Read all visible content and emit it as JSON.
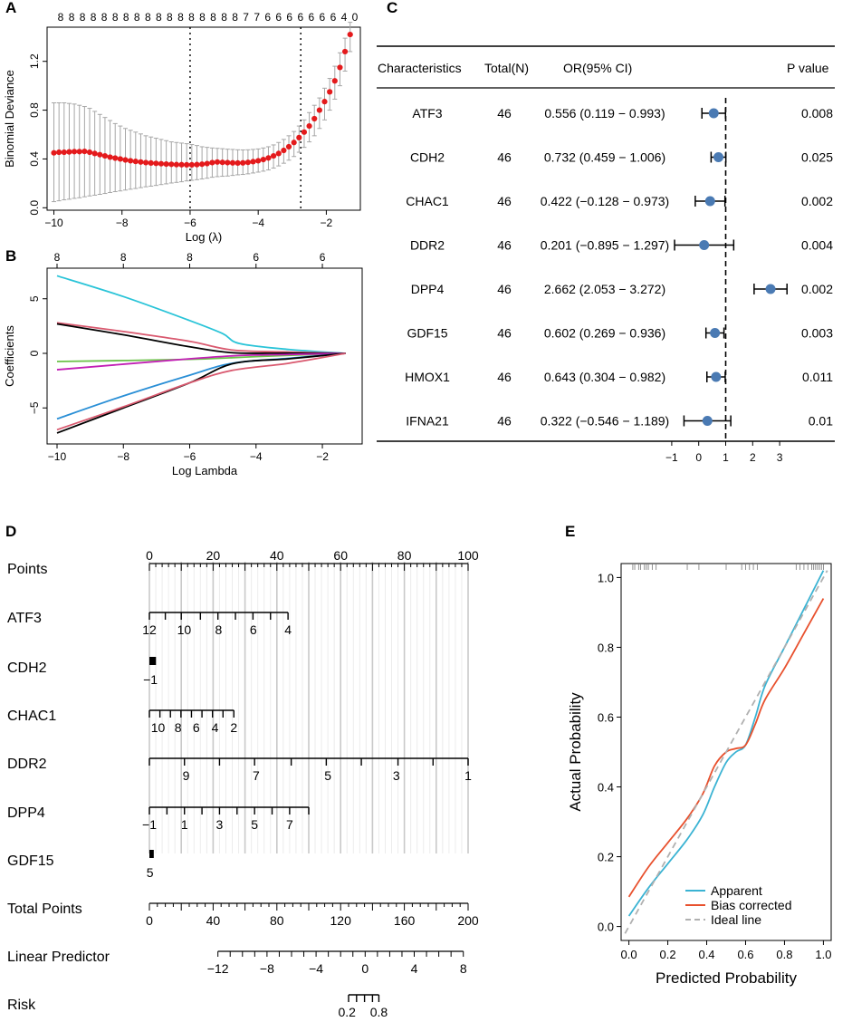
{
  "colors": {
    "red": "#e41a1c",
    "gray_bar": "#a6a6a6",
    "point_blue": "#4a7ab3",
    "cyan": "#2ac4d8",
    "rose": "#d9596f",
    "black": "#000000",
    "green": "#6cc24a",
    "magenta": "#c21fb5",
    "blue": "#2a8fd6",
    "apparent": "#3bb3d3",
    "bias": "#e8512e",
    "ideal": "#b0b0b0"
  },
  "labels": {
    "a": "A",
    "b": "B",
    "c": "C",
    "d": "D",
    "e": "E"
  },
  "chart_data": [
    {
      "id": "A",
      "type": "scatter",
      "title": "",
      "xlabel": "Log (λ)",
      "ylabel": "Binomial Deviance",
      "xlim": [
        -10.2,
        -1.0
      ],
      "ylim": [
        -0.02,
        1.48
      ],
      "xticks": [
        -10,
        -8,
        -6,
        -4,
        -2
      ],
      "yticks": [
        0.0,
        0.4,
        0.8,
        1.2
      ],
      "xtick_labels": [
        "−10",
        "−8",
        "−6",
        "−4",
        "−2"
      ],
      "ytick_labels": [
        "0.0",
        "0.4",
        "0.8",
        "1.2"
      ],
      "top_axis_labels": [
        "8",
        "8",
        "8",
        "8",
        "8",
        "8",
        "8",
        "8",
        "8",
        "8",
        "8",
        "8",
        "8",
        "8",
        "8",
        "8",
        "8",
        "7",
        "7",
        "6",
        "6",
        "6",
        "6",
        "6",
        "6",
        "6",
        "4",
        "0"
      ],
      "vlines": [
        -6.0,
        -2.75
      ],
      "x": [
        -10.0,
        -9.85,
        -9.7,
        -9.55,
        -9.4,
        -9.25,
        -9.1,
        -8.95,
        -8.8,
        -8.65,
        -8.5,
        -8.35,
        -8.2,
        -8.05,
        -7.9,
        -7.75,
        -7.6,
        -7.45,
        -7.3,
        -7.15,
        -7.0,
        -6.85,
        -6.7,
        -6.55,
        -6.4,
        -6.25,
        -6.1,
        -5.95,
        -5.8,
        -5.65,
        -5.5,
        -5.35,
        -5.2,
        -5.05,
        -4.9,
        -4.75,
        -4.6,
        -4.45,
        -4.3,
        -4.15,
        -4.0,
        -3.85,
        -3.7,
        -3.55,
        -3.4,
        -3.25,
        -3.1,
        -2.95,
        -2.8,
        -2.65,
        -2.5,
        -2.35,
        -2.2,
        -2.05,
        -1.9,
        -1.75,
        -1.6,
        -1.45,
        -1.3
      ],
      "y": [
        0.45,
        0.455,
        0.455,
        0.458,
        0.46,
        0.46,
        0.462,
        0.455,
        0.445,
        0.435,
        0.425,
        0.415,
        0.407,
        0.4,
        0.392,
        0.385,
        0.38,
        0.375,
        0.37,
        0.367,
        0.364,
        0.361,
        0.358,
        0.356,
        0.354,
        0.353,
        0.352,
        0.352,
        0.354,
        0.357,
        0.362,
        0.37,
        0.375,
        0.372,
        0.37,
        0.368,
        0.367,
        0.368,
        0.372,
        0.378,
        0.385,
        0.395,
        0.408,
        0.425,
        0.445,
        0.47,
        0.5,
        0.535,
        0.575,
        0.62,
        0.67,
        0.73,
        0.8,
        0.87,
        0.95,
        1.04,
        1.15,
        1.28,
        1.42
      ],
      "lower": [
        0.05,
        0.057,
        0.065,
        0.07,
        0.077,
        0.082,
        0.09,
        0.097,
        0.103,
        0.11,
        0.117,
        0.125,
        0.132,
        0.138,
        0.145,
        0.152,
        0.158,
        0.165,
        0.172,
        0.177,
        0.183,
        0.19,
        0.196,
        0.203,
        0.208,
        0.213,
        0.22,
        0.225,
        0.23,
        0.236,
        0.242,
        0.25,
        0.255,
        0.258,
        0.26,
        0.265,
        0.27,
        0.273,
        0.278,
        0.285,
        0.292,
        0.3,
        0.31,
        0.325,
        0.343,
        0.365,
        0.39,
        0.42,
        0.455,
        0.495,
        0.54,
        0.59,
        0.65,
        0.72,
        0.8,
        0.89,
        1.0,
        1.12,
        1.28
      ],
      "upper": [
        0.86,
        0.86,
        0.86,
        0.855,
        0.85,
        0.84,
        0.83,
        0.815,
        0.79,
        0.765,
        0.74,
        0.715,
        0.69,
        0.67,
        0.65,
        0.635,
        0.62,
        0.605,
        0.59,
        0.58,
        0.57,
        0.56,
        0.55,
        0.54,
        0.535,
        0.53,
        0.525,
        0.518,
        0.51,
        0.5,
        0.495,
        0.49,
        0.487,
        0.484,
        0.48,
        0.478,
        0.475,
        0.474,
        0.475,
        0.478,
        0.482,
        0.49,
        0.5,
        0.515,
        0.535,
        0.56,
        0.59,
        0.625,
        0.67,
        0.72,
        0.78,
        0.84,
        0.9,
        0.98,
        1.06,
        1.16,
        1.27,
        1.39,
        1.52
      ]
    },
    {
      "id": "B",
      "type": "line",
      "title": "",
      "xlabel": "Log Lambda",
      "ylabel": "Coefficients",
      "xlim": [
        -10.3,
        -0.8
      ],
      "ylim": [
        -8.3,
        7.8
      ],
      "xticks": [
        -10,
        -8,
        -6,
        -4,
        -2
      ],
      "yticks": [
        -5,
        0,
        5
      ],
      "xtick_labels": [
        "−10",
        "−8",
        "−6",
        "−4",
        "−2"
      ],
      "ytick_labels": [
        "−5",
        "0",
        "5"
      ],
      "top_axis_labels": [
        "8",
        "8",
        "8",
        "6",
        "6"
      ],
      "top_axis_positions": [
        -10,
        -8,
        -6,
        -4,
        -2
      ],
      "series": [
        {
          "name": "cyan",
          "color_key": "cyan",
          "x": [
            -10,
            -8,
            -6,
            -5,
            -4.5,
            -3,
            -1.3
          ],
          "y": [
            7.1,
            5.2,
            3.0,
            1.8,
            0.9,
            0.35,
            0
          ]
        },
        {
          "name": "rose-top",
          "color_key": "rose",
          "x": [
            -10,
            -8,
            -6,
            -4.7,
            -3,
            -1.3
          ],
          "y": [
            2.8,
            2.0,
            1.1,
            0.3,
            0.12,
            0
          ]
        },
        {
          "name": "black-top",
          "color_key": "black",
          "x": [
            -10,
            -8,
            -6,
            -4.7,
            -3,
            -1.3
          ],
          "y": [
            2.7,
            1.7,
            0.6,
            0.05,
            0.02,
            0
          ]
        },
        {
          "name": "green",
          "color_key": "green",
          "x": [
            -10,
            -6,
            -4,
            -1.3
          ],
          "y": [
            -0.75,
            -0.55,
            -0.3,
            0
          ]
        },
        {
          "name": "magenta",
          "color_key": "magenta",
          "x": [
            -10,
            -6,
            -4.5,
            -3,
            -1.3
          ],
          "y": [
            -1.5,
            -0.5,
            -0.2,
            -0.1,
            0
          ]
        },
        {
          "name": "blue",
          "color_key": "blue",
          "x": [
            -10,
            -8,
            -6,
            -4.7,
            -3,
            -1.3
          ],
          "y": [
            -6.0,
            -3.9,
            -2.0,
            -0.9,
            -0.45,
            0
          ]
        },
        {
          "name": "black-bottom",
          "color_key": "black",
          "x": [
            -10,
            -8,
            -6,
            -4.7,
            -3,
            -1.3
          ],
          "y": [
            -7.3,
            -5.0,
            -2.7,
            -0.95,
            -0.5,
            0
          ]
        },
        {
          "name": "rose-bottom",
          "color_key": "rose",
          "x": [
            -10,
            -8,
            -6,
            -4.7,
            -3,
            -1.3
          ],
          "y": [
            -7.0,
            -4.9,
            -2.7,
            -1.55,
            -0.9,
            0
          ]
        }
      ]
    },
    {
      "id": "C",
      "type": "table",
      "title": "",
      "columns": [
        "Characteristics",
        "Total(N)",
        "OR(95% CI)",
        "P value"
      ],
      "rows": [
        {
          "name": "ATF3",
          "total": "46",
          "ci_text": "0.556 (0.119 − 0.993)",
          "p": "0.008",
          "or": 0.556,
          "lo": 0.119,
          "hi": 0.993
        },
        {
          "name": "CDH2",
          "total": "46",
          "ci_text": "0.732 (0.459 − 1.006)",
          "p": "0.025",
          "or": 0.732,
          "lo": 0.459,
          "hi": 1.006
        },
        {
          "name": "CHAC1",
          "total": "46",
          "ci_text": "0.422 (−0.128 − 0.973)",
          "p": "0.002",
          "or": 0.422,
          "lo": -0.128,
          "hi": 0.973
        },
        {
          "name": "DDR2",
          "total": "46",
          "ci_text": "0.201 (−0.895 − 1.297)",
          "p": "0.004",
          "or": 0.201,
          "lo": -0.895,
          "hi": 1.297
        },
        {
          "name": "DPP4",
          "total": "46",
          "ci_text": "2.662 (2.053 − 3.272)",
          "p": "0.002",
          "or": 2.662,
          "lo": 2.053,
          "hi": 3.272
        },
        {
          "name": "GDF15",
          "total": "46",
          "ci_text": "0.602 (0.269 − 0.936)",
          "p": "0.003",
          "or": 0.602,
          "lo": 0.269,
          "hi": 0.936
        },
        {
          "name": "HMOX1",
          "total": "46",
          "ci_text": "0.643 (0.304 − 0.982)",
          "p": "0.011",
          "or": 0.643,
          "lo": 0.304,
          "hi": 0.982
        },
        {
          "name": "IFNA21",
          "total": "46",
          "ci_text": "0.322 (−0.546 − 1.189)",
          "p": "0.01",
          "or": 0.322,
          "lo": -0.546,
          "hi": 1.189
        }
      ],
      "reference_line": 1,
      "xlim": [
        -1.5,
        3.5
      ],
      "xticks": [
        -1,
        0,
        1,
        2,
        3
      ],
      "xtick_labels": [
        "−1",
        "0",
        "1",
        "2",
        "3"
      ]
    },
    {
      "id": "D",
      "type": "nomogram",
      "title": "",
      "points_range": [
        0,
        100
      ],
      "rows": [
        {
          "label": "Points",
          "kind": "points",
          "min": 0,
          "max": 100,
          "major_ticks": [
            0,
            20,
            40,
            60,
            80,
            100
          ],
          "major_labels": [
            "0",
            "20",
            "40",
            "60",
            "80",
            "100"
          ],
          "minor_step": 2,
          "labels_above": true
        },
        {
          "label": "ATF3",
          "kind": "var",
          "start_pt": 0,
          "end_pt": 43.5,
          "ticks_pt": [
            0,
            5,
            10,
            16,
            21.5,
            27,
            32.5,
            38,
            43.5
          ],
          "tick_labels": [
            {
              "pt": 0,
              "text": "12"
            },
            {
              "pt": 10.9,
              "text": "10"
            },
            {
              "pt": 21.7,
              "text": "8"
            },
            {
              "pt": 32.6,
              "text": "6"
            },
            {
              "pt": 43.5,
              "text": "4"
            }
          ]
        },
        {
          "label": "CDH2",
          "kind": "var",
          "start_pt": 0,
          "end_pt": 1.5,
          "ticks_pt": [
            0,
            1.5
          ],
          "tick_labels": [
            {
              "pt": 0.3,
              "text": "−1"
            }
          ],
          "block": true
        },
        {
          "label": "CHAC1",
          "kind": "var",
          "start_pt": 0,
          "end_pt": 26.5,
          "ticks_pt": [
            0,
            3.3,
            6.6,
            9.9,
            13.2,
            16.5,
            19.8,
            23.1,
            26.5
          ],
          "tick_labels": [
            {
              "pt": 2.7,
              "text": "10"
            },
            {
              "pt": 9.0,
              "text": "8"
            },
            {
              "pt": 14.7,
              "text": "6"
            },
            {
              "pt": 20.6,
              "text": "4"
            },
            {
              "pt": 26.5,
              "text": "2"
            }
          ]
        },
        {
          "label": "DDR2",
          "kind": "var",
          "start_pt": 0,
          "end_pt": 100,
          "ticks_pt": [
            0,
            11,
            22,
            33,
            44.5,
            55.5,
            66.5,
            78,
            89,
            100
          ],
          "tick_labels": [
            {
              "pt": 11.5,
              "text": "9"
            },
            {
              "pt": 33.5,
              "text": "7"
            },
            {
              "pt": 56,
              "text": "5"
            },
            {
              "pt": 77.5,
              "text": "3"
            },
            {
              "pt": 100,
              "text": "1"
            }
          ]
        },
        {
          "label": "DPP4",
          "kind": "var",
          "start_pt": 0,
          "end_pt": 50,
          "ticks_pt": [
            0,
            5.5,
            11,
            16.5,
            22,
            27.5,
            33,
            38.5,
            44,
            50
          ],
          "tick_labels": [
            {
              "pt": 0,
              "text": "−1"
            },
            {
              "pt": 11,
              "text": "1"
            },
            {
              "pt": 22,
              "text": "3"
            },
            {
              "pt": 33,
              "text": "5"
            },
            {
              "pt": 44,
              "text": "7"
            }
          ]
        },
        {
          "label": "GDF15",
          "kind": "var",
          "start_pt": 0,
          "end_pt": 0.8,
          "ticks_pt": [
            0,
            0.8
          ],
          "tick_labels": [
            {
              "pt": 0.2,
              "text": "5"
            }
          ],
          "block": true
        },
        {
          "label": "Total Points",
          "kind": "total",
          "min": 0,
          "max": 200,
          "major_ticks": [
            0,
            40,
            80,
            120,
            160,
            200
          ],
          "major_labels": [
            "0",
            "40",
            "80",
            "120",
            "160",
            "200"
          ],
          "minor_step": 5
        },
        {
          "label": "Linear Predictor",
          "kind": "lp",
          "min": -12,
          "max": 8,
          "major_ticks": [
            -12,
            -8,
            -4,
            0,
            4,
            8
          ],
          "major_labels": [
            "−12",
            "−8",
            "−4",
            "0",
            "4",
            "8"
          ],
          "minor_step": 1,
          "start_pt": 21.5,
          "end_pt": 98.5
        },
        {
          "label": "Risk",
          "kind": "risk",
          "start_pt": 62.5,
          "end_pt": 72,
          "ticks_pt": [
            62.5,
            65,
            67.5,
            70,
            72
          ],
          "tick_labels": [
            {
              "pt": 62,
              "text": "0.2"
            },
            {
              "pt": 72,
              "text": "0.8"
            }
          ]
        }
      ],
      "grid_points": [
        0,
        10,
        20,
        30,
        40,
        50,
        60,
        70,
        80,
        90,
        100
      ],
      "light_grid_step": 2
    },
    {
      "id": "E",
      "type": "line",
      "title": "",
      "xlabel": "Predicted Probability",
      "ylabel": "Actual Probability",
      "xlim": [
        -0.04,
        1.04
      ],
      "ylim": [
        -0.04,
        1.04
      ],
      "xticks": [
        0.0,
        0.2,
        0.4,
        0.6,
        0.8,
        1.0
      ],
      "yticks": [
        0.0,
        0.2,
        0.4,
        0.6,
        0.8,
        1.0
      ],
      "xtick_labels": [
        "0.0",
        "0.2",
        "0.4",
        "0.6",
        "0.8",
        "1.0"
      ],
      "ytick_labels": [
        "0.0",
        "0.2",
        "0.4",
        "0.6",
        "0.8",
        "1.0"
      ],
      "rug": [
        0.02,
        0.03,
        0.05,
        0.06,
        0.08,
        0.09,
        0.1,
        0.12,
        0.14,
        0.3,
        0.36,
        0.5,
        0.58,
        0.6,
        0.62,
        0.64,
        0.66,
        0.86,
        0.88,
        0.9,
        0.92,
        0.94,
        0.95,
        0.96,
        0.97,
        0.98,
        0.99,
        1.0
      ],
      "series": [
        {
          "name": "Apparent",
          "color_key": "apparent",
          "dash": false,
          "x": [
            0.0,
            0.1,
            0.2,
            0.3,
            0.38,
            0.44,
            0.5,
            0.55,
            0.6,
            0.65,
            0.7,
            0.8,
            0.9,
            1.0
          ],
          "y": [
            0.03,
            0.11,
            0.18,
            0.25,
            0.32,
            0.4,
            0.47,
            0.5,
            0.52,
            0.6,
            0.69,
            0.8,
            0.91,
            1.02
          ]
        },
        {
          "name": "Bias corrected",
          "color_key": "bias",
          "dash": false,
          "x": [
            0.0,
            0.1,
            0.2,
            0.3,
            0.38,
            0.44,
            0.5,
            0.55,
            0.6,
            0.65,
            0.7,
            0.8,
            0.9,
            1.0
          ],
          "y": [
            0.085,
            0.17,
            0.24,
            0.31,
            0.38,
            0.46,
            0.5,
            0.51,
            0.52,
            0.58,
            0.65,
            0.74,
            0.84,
            0.94
          ]
        },
        {
          "name": "Ideal line",
          "color_key": "ideal",
          "dash": true,
          "x": [
            -0.02,
            1.02
          ],
          "y": [
            -0.02,
            1.02
          ]
        }
      ],
      "legend": [
        "Apparent",
        "Bias corrected",
        "Ideal line"
      ],
      "legend_position": "bottom-right"
    }
  ]
}
